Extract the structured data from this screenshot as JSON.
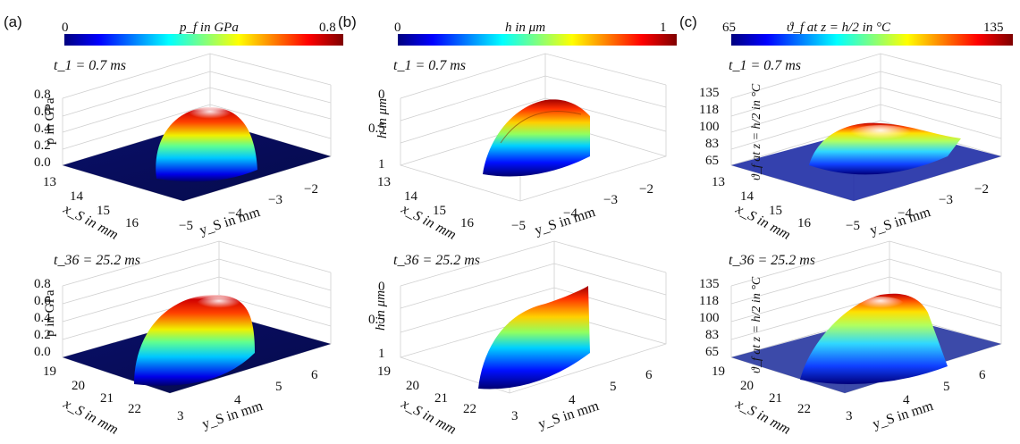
{
  "chart_data": [
    {
      "type": "surface3d",
      "panel": "(a)",
      "colorbar": {
        "label": "p_f in GPa",
        "min": "0",
        "max": "0.8",
        "colormap": "jet"
      },
      "plots": [
        {
          "time_label": "t_1 = 0.7 ms",
          "zlabel": "p in GPa",
          "zticks": [
            "0.0",
            "0.2",
            "0.4",
            "0.6",
            "0.8"
          ],
          "xlabel": "x_S in mm",
          "xticks": [
            "13",
            "14",
            "15",
            "16"
          ],
          "ylabel": "y_S in mm",
          "yticks": [
            "−5",
            "−4",
            "−3",
            "−2"
          ],
          "peak": 0.8
        },
        {
          "time_label": "t_36 = 25.2 ms",
          "zlabel": "p in GPa",
          "zticks": [
            "0.0",
            "0.2",
            "0.4",
            "0.6",
            "0.8"
          ],
          "xlabel": "x_S in mm",
          "xticks": [
            "19",
            "20",
            "21",
            "22"
          ],
          "ylabel": "y_S in mm",
          "yticks": [
            "3",
            "4",
            "5",
            "6"
          ],
          "peak": 0.8
        }
      ]
    },
    {
      "type": "surface3d",
      "panel": "(b)",
      "colorbar": {
        "label": "h in μm",
        "min": "0",
        "max": "1",
        "colormap": "jet"
      },
      "plots": [
        {
          "time_label": "t_1 = 0.7 ms",
          "zlabel": "h in μm",
          "zticks": [
            "0",
            "0.5",
            "1"
          ],
          "xlabel": "x_S in mm",
          "xticks": [
            "13",
            "14",
            "15",
            "16"
          ],
          "ylabel": "y_S in mm",
          "yticks": [
            "−5",
            "−4",
            "−3",
            "−2"
          ]
        },
        {
          "time_label": "t_36 = 25.2 ms",
          "zlabel": "h in μm",
          "zticks": [
            "0",
            "0.5",
            "1"
          ],
          "xlabel": "x_S in mm",
          "xticks": [
            "19",
            "20",
            "21",
            "22"
          ],
          "ylabel": "y_S in mm",
          "yticks": [
            "3",
            "4",
            "5",
            "6"
          ]
        }
      ]
    },
    {
      "type": "surface3d",
      "panel": "(c)",
      "colorbar": {
        "label": "ϑ_f at z = h/2 in °C",
        "min": "65",
        "max": "135",
        "colormap": "jet"
      },
      "plots": [
        {
          "time_label": "t_1 = 0.7 ms",
          "zlabel": "ϑ_f at z = h/2 in °C",
          "zticks": [
            "65",
            "83",
            "100",
            "118",
            "135"
          ],
          "xlabel": "x_S in mm",
          "xticks": [
            "13",
            "14",
            "15",
            "16"
          ],
          "ylabel": "y_S in mm",
          "yticks": [
            "−5",
            "−4",
            "−3",
            "−2"
          ]
        },
        {
          "time_label": "t_36 = 25.2 ms",
          "zlabel": "ϑ_f at z = h/2 in °C",
          "zticks": [
            "65",
            "83",
            "100",
            "118",
            "135"
          ],
          "xlabel": "x_S in mm",
          "xticks": [
            "19",
            "20",
            "21",
            "22"
          ],
          "ylabel": "y_S in mm",
          "yticks": [
            "3",
            "4",
            "5",
            "6"
          ]
        }
      ]
    }
  ]
}
